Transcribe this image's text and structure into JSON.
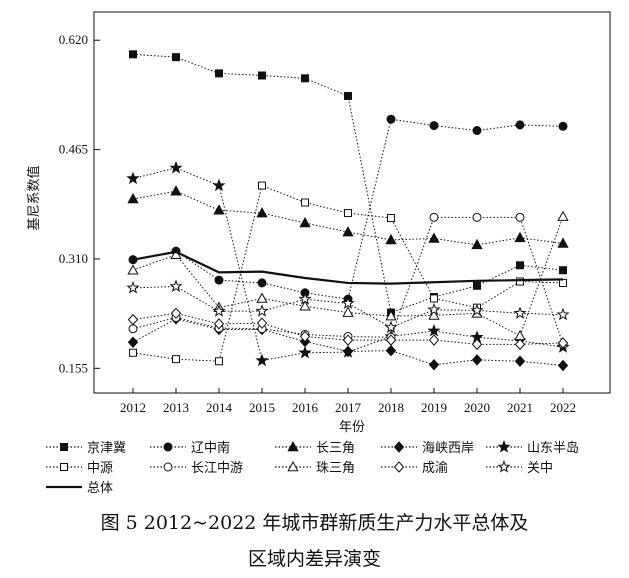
{
  "caption": {
    "line1": "图 5 2012~2022 年城市群新质生产力水平总体及",
    "line2": "区域内差异演变"
  },
  "chart_data": {
    "type": "line",
    "xlabel": "年份",
    "ylabel": "基尼系数值",
    "ylim": [
      0.12,
      0.66
    ],
    "yticks": [
      0.155,
      0.31,
      0.465,
      0.62
    ],
    "ytick_labels": [
      "0.155",
      "0.310",
      "0.465",
      "0.620"
    ],
    "categories": [
      "2012",
      "2013",
      "2014",
      "2015",
      "2016",
      "2017",
      "2018",
      "2019",
      "2020",
      "2021",
      "2022"
    ],
    "series": [
      {
        "name": "京津冀",
        "marker": "square-filled",
        "values": [
          0.6,
          0.596,
          0.573,
          0.57,
          0.566,
          0.541,
          0.234,
          0.256,
          0.272,
          0.301,
          0.294
        ]
      },
      {
        "name": "辽中南",
        "marker": "circle-filled",
        "values": [
          0.309,
          0.321,
          0.28,
          0.276,
          0.262,
          0.253,
          0.508,
          0.499,
          0.492,
          0.5,
          0.498
        ]
      },
      {
        "name": "长三角",
        "marker": "triangle-filled",
        "values": [
          0.395,
          0.406,
          0.379,
          0.375,
          0.361,
          0.348,
          0.337,
          0.339,
          0.33,
          0.34,
          0.332
        ]
      },
      {
        "name": "海峡西岸",
        "marker": "diamond-filled",
        "values": [
          0.192,
          0.225,
          0.21,
          0.21,
          0.193,
          0.179,
          0.18,
          0.16,
          0.167,
          0.165,
          0.159
        ]
      },
      {
        "name": "山东半岛",
        "marker": "star-filled",
        "values": [
          0.424,
          0.439,
          0.414,
          0.166,
          0.177,
          0.178,
          0.2,
          0.208,
          0.199,
          0.194,
          0.185
        ]
      },
      {
        "name": "中源",
        "marker": "square-open",
        "values": [
          0.177,
          0.168,
          0.165,
          0.414,
          0.39,
          0.375,
          0.368,
          0.254,
          0.241,
          0.278,
          0.276
        ]
      },
      {
        "name": "长江中游",
        "marker": "circle-open",
        "values": [
          0.211,
          0.227,
          0.212,
          0.211,
          0.203,
          0.2,
          0.199,
          0.369,
          0.369,
          0.369,
          0.189
        ]
      },
      {
        "name": "珠三角",
        "marker": "triangle-open",
        "values": [
          0.294,
          0.316,
          0.241,
          0.254,
          0.243,
          0.234,
          0.229,
          0.23,
          0.233,
          0.201,
          0.37
        ]
      },
      {
        "name": "成渝",
        "marker": "diamond-open",
        "values": [
          0.224,
          0.233,
          0.218,
          0.219,
          0.2,
          0.195,
          0.195,
          0.195,
          0.189,
          0.189,
          0.191
        ]
      },
      {
        "name": "关中",
        "marker": "star-open",
        "values": [
          0.269,
          0.271,
          0.236,
          0.236,
          0.253,
          0.247,
          0.213,
          0.238,
          0.237,
          0.233,
          0.231
        ]
      },
      {
        "name": "总体",
        "marker": "none",
        "line": "solid",
        "values": [
          0.309,
          0.32,
          0.291,
          0.292,
          0.283,
          0.276,
          0.275,
          0.277,
          0.279,
          0.28,
          0.281
        ]
      }
    ],
    "legend": "bottom",
    "grid": false
  }
}
